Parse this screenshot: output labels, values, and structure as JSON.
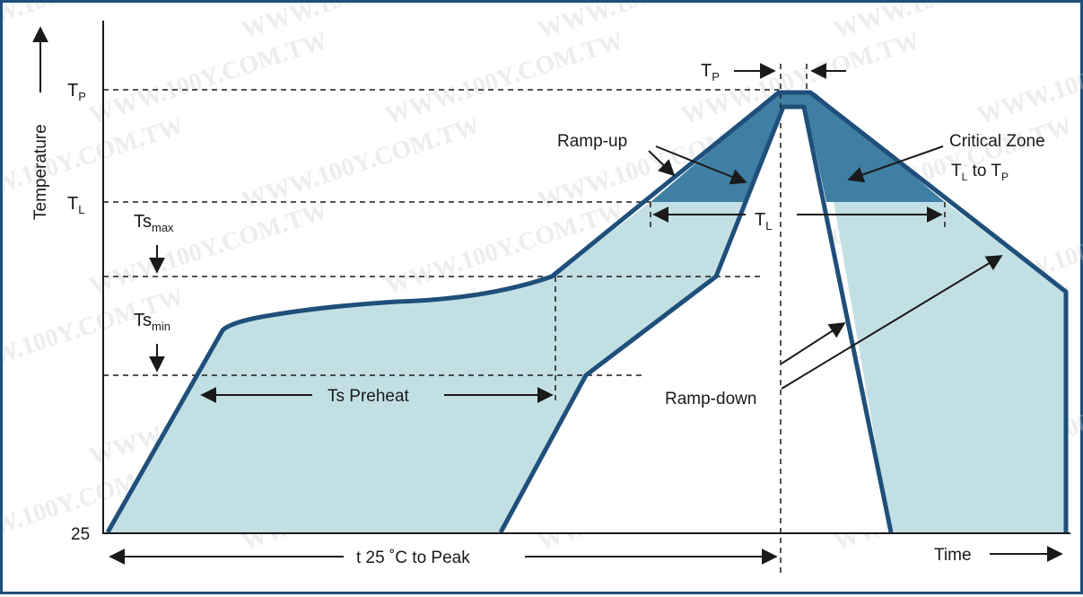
{
  "diagram": {
    "y_axis_title": "Temperature",
    "x_axis_title": "Time",
    "y_levels": {
      "tp": {
        "main": "T",
        "sub": "P"
      },
      "tl": {
        "main": "T",
        "sub": "L"
      },
      "tsmax": {
        "main": "Ts",
        "sub": "max"
      },
      "tsmin": {
        "main": "Ts",
        "sub": "min"
      },
      "ambient": "25"
    },
    "labels": {
      "tp_window": {
        "main": "T",
        "sub": "P"
      },
      "ramp_up": "Ramp-up",
      "critical_zone": "Critical Zone",
      "critical_range": {
        "t1": "T",
        "s1": "L",
        "mid": " to ",
        "t2": "T",
        "s2": "P"
      },
      "tl_window": {
        "main": "T",
        "sub": "L"
      },
      "preheat": "Ts Preheat",
      "ramp_down": "Ramp-down",
      "time_to_peak": "t 25 ˚C to Peak"
    },
    "watermark": "WWW.100Y.COM.TW",
    "colors": {
      "line": "#1f4f7a",
      "fill_light": "#c2dfe4",
      "fill_critical": "#3f7fa4",
      "border": "#1f4f7a"
    }
  }
}
